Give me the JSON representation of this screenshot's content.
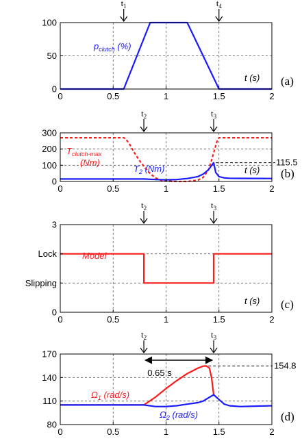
{
  "colors": {
    "blue": "#1a1aff",
    "red": "#ff1a1a",
    "grid": "#555555",
    "black": "#000000"
  },
  "chart_data": [
    {
      "panel_label": "(a)",
      "type": "line",
      "xlim": [
        0,
        2
      ],
      "ylim": [
        0,
        100
      ],
      "xticks": [
        "0",
        "0.5",
        "1",
        "1.5",
        "2"
      ],
      "yticks": [
        "0",
        "50",
        "100"
      ],
      "xlabel": "t (s)",
      "events": [
        {
          "label": "t",
          "sub": "1",
          "x": 0.6
        },
        {
          "label": "t",
          "sub": "4",
          "x": 1.5
        }
      ],
      "series": [
        {
          "name": "p",
          "name_sub": "clutch",
          "name_suffix": " (%)",
          "color": "blue",
          "dash": false,
          "x": [
            0,
            0.6,
            0.85,
            1.2,
            1.5,
            2
          ],
          "y": [
            0,
            0,
            100,
            100,
            0,
            0
          ]
        }
      ],
      "annotations": []
    },
    {
      "panel_label": "(b)",
      "type": "line",
      "xlim": [
        0,
        2
      ],
      "ylim": [
        0,
        300
      ],
      "xticks": [
        "0",
        "0.5",
        "1",
        "1.5",
        "2"
      ],
      "yticks": [
        "0",
        "100",
        "200",
        "300"
      ],
      "xlabel": "t (s)",
      "events": [
        {
          "label": "t",
          "sub": "2",
          "x": 0.79
        },
        {
          "label": "t",
          "sub": "3",
          "x": 1.45
        }
      ],
      "series": [
        {
          "name": "T",
          "name_sub": "clutch-max",
          "name_line2": "(Nm)",
          "color": "red",
          "dash": true,
          "x": [
            0,
            0.6,
            0.62,
            0.66,
            0.7,
            0.75,
            0.8,
            0.85,
            0.9,
            0.95,
            1.0,
            1.1,
            1.2,
            1.3,
            1.35,
            1.4,
            1.43,
            1.46,
            1.48,
            1.5,
            2
          ],
          "y": [
            270,
            270,
            262,
            225,
            178,
            128,
            84,
            48,
            22,
            8,
            2,
            0,
            0,
            8,
            25,
            70,
            130,
            200,
            245,
            270,
            270
          ]
        },
        {
          "name": "T",
          "name_sub": "2",
          "name_suffix": " (Nm)",
          "color": "blue",
          "dash": false,
          "x": [
            0,
            0.79,
            0.9,
            1.0,
            1.1,
            1.2,
            1.3,
            1.35,
            1.4,
            1.43,
            1.45,
            1.47,
            1.5,
            1.55,
            1.6,
            1.7,
            2
          ],
          "y": [
            15,
            15,
            12,
            10,
            12,
            18,
            30,
            45,
            72,
            98,
            115.5,
            55,
            30,
            22,
            20,
            19,
            18
          ]
        }
      ],
      "annotations": [
        {
          "text": "115.5",
          "x": 1.45,
          "y": 115.5
        }
      ]
    },
    {
      "panel_label": "(c)",
      "type": "line",
      "xlim": [
        0,
        2
      ],
      "ylim": [
        0,
        3
      ],
      "xticks": [
        "0",
        "0.5",
        "1",
        "1.5",
        "2"
      ],
      "yticks": [
        "0",
        "1",
        "2",
        "3"
      ],
      "ytick_text": {
        "1": "Slipping",
        "2": "Lock"
      },
      "xlabel": "t (s)",
      "events": [
        {
          "label": "t",
          "sub": "2",
          "x": 0.79
        },
        {
          "label": "t",
          "sub": "3",
          "x": 1.45
        }
      ],
      "series": [
        {
          "name": "Model",
          "color": "red",
          "dash": false,
          "x": [
            0,
            0.79,
            0.79,
            1.45,
            1.45,
            2
          ],
          "y": [
            2,
            2,
            1,
            1,
            2,
            2
          ]
        }
      ],
      "annotations": []
    },
    {
      "panel_label": "(d)",
      "type": "line",
      "xlim": [
        0,
        2
      ],
      "ylim": [
        80,
        170
      ],
      "xticks": [
        "0",
        "0.5",
        "1",
        "1.5",
        "2"
      ],
      "yticks": [
        "80",
        "110",
        "140",
        "170"
      ],
      "xlabel": "",
      "events": [
        {
          "label": "t",
          "sub": "2",
          "x": 0.79
        },
        {
          "label": "t",
          "sub": "3",
          "x": 1.45
        }
      ],
      "series": [
        {
          "name": "Ω",
          "name_sub": "1",
          "name_suffix": " (rad/s)",
          "color": "red",
          "dash": false,
          "x": [
            0,
            0.79,
            0.9,
            1.0,
            1.1,
            1.2,
            1.3,
            1.35,
            1.38,
            1.41,
            1.43,
            1.45
          ],
          "y": [
            105,
            105,
            115,
            126,
            136,
            145,
            152,
            154.5,
            154.8,
            152,
            140,
            118
          ]
        },
        {
          "name": "Ω",
          "name_sub": "2",
          "name_suffix": " (rad/s)",
          "color": "blue",
          "dash": false,
          "x": [
            0,
            0.79,
            0.9,
            1.0,
            1.1,
            1.2,
            1.3,
            1.35,
            1.4,
            1.45,
            1.5,
            1.55,
            1.6,
            1.7,
            2
          ],
          "y": [
            105,
            105,
            103,
            103,
            104,
            106,
            108,
            110,
            114,
            118,
            112,
            106,
            104,
            103,
            104
          ]
        }
      ],
      "annotations": [
        {
          "text": "154.8",
          "x": 1.38,
          "y": 154.8
        },
        {
          "text": "0.65 s",
          "x1": 0.79,
          "x2": 1.45
        }
      ]
    }
  ]
}
